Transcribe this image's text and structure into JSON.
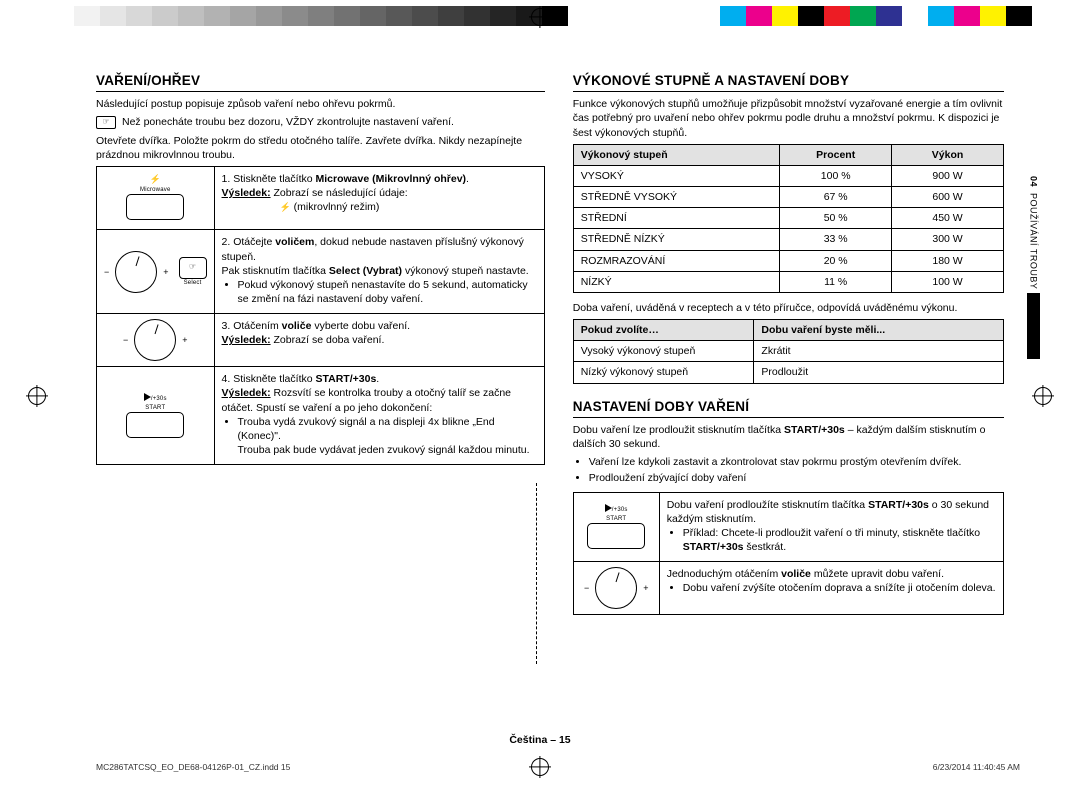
{
  "colorbar": {
    "grays": [
      "#ffffff",
      "#f2f2f2",
      "#e5e5e5",
      "#d8d8d8",
      "#cbcbcb",
      "#bfbfbf",
      "#b2b2b2",
      "#a5a5a5",
      "#989898",
      "#8b8b8b",
      "#7f7f7f",
      "#727272",
      "#656565",
      "#585858",
      "#4c4c4c",
      "#3f3f3f",
      "#323232",
      "#252525",
      "#191919",
      "#000000"
    ],
    "hues": [
      "#00aeef",
      "#ec008c",
      "#fff200",
      "#000000",
      "#ed1c24",
      "#00a651",
      "#2e3192",
      "#ffffff",
      "#00aeef",
      "#ec008c",
      "#fff200",
      "#000000"
    ]
  },
  "left": {
    "heading": "VAŘENÍ/OHŘEV",
    "intro": "Následující postup popisuje způsob vaření nebo ohřevu pokrmů.",
    "note": "Než ponecháte troubu bez dozoru, VŽDY zkontrolujte nastavení vaření.",
    "p2": "Otevřete dvířka. Položte pokrm do středu otočného talíře. Zavřete dvířka. Nikdy nezapínejte prázdnou mikrovlnnou troubu.",
    "microwave_label": "Microwave",
    "select_label": "Select",
    "start_label": "START",
    "plus30": "/+30s",
    "steps": {
      "s1_a": "1.  Stiskněte tlačítko ",
      "s1_b": "Microwave (Mikrovlnný ohřev)",
      "s1_c": ".",
      "s1_res": "Výsledek:",
      "s1_res_t": " Zobrazí se následující údaje:",
      "s1_mode": "(mikrovlnný režim)",
      "s2_a": "2.  Otáčejte ",
      "s2_b": "voličem",
      "s2_c": ", dokud nebude nastaven příslušný výkonový stupeň.",
      "s2_d": "Pak stisknutím tlačítka ",
      "s2_e": "Select (Vybrat)",
      "s2_f": " výkonový stupeň nastavte.",
      "s2_li": "Pokud výkonový stupeň nenastavíte do 5 sekund, automaticky se změní na fázi nastavení doby vaření.",
      "s3_a": "3.  Otáčením ",
      "s3_b": "voliče",
      "s3_c": " vyberte dobu vaření.",
      "s3_res": "Výsledek:",
      "s3_res_t": " Zobrazí se doba vaření.",
      "s4_a": "4.  Stiskněte tlačítko ",
      "s4_b": "START/+30s",
      "s4_c": ".",
      "s4_res": "Výsledek:",
      "s4_res_t": " Rozsvítí se kontrolka trouby a otočný talíř se začne otáčet. Spustí se vaření a po jeho dokončení:",
      "s4_li1": "Trouba vydá zvukový signál a na displeji 4x blikne „End (Konec)\".",
      "s4_li1b": "Trouba pak bude vydávat jeden zvukový signál každou minutu."
    }
  },
  "right": {
    "heading1": "VÝKONOVÉ STUPNĚ A NASTAVENÍ DOBY",
    "p1": "Funkce výkonových stupňů umožňuje přizpůsobit množství vyzařované energie a tím ovlivnit čas potřebný pro uvaření nebo ohřev pokrmu podle druhu a množství pokrmu. K dispozici je šest výkonových stupňů.",
    "table1": {
      "headers": [
        "Výkonový stupeň",
        "Procent",
        "Výkon"
      ],
      "rows": [
        [
          "VYSOKÝ",
          "100 %",
          "900 W"
        ],
        [
          "STŘEDNĚ VYSOKÝ",
          "67 %",
          "600 W"
        ],
        [
          "STŘEDNÍ",
          "50 %",
          "450 W"
        ],
        [
          "STŘEDNĚ NÍZKÝ",
          "33 %",
          "300 W"
        ],
        [
          "ROZMRAZOVÁNÍ",
          "20 %",
          "180 W"
        ],
        [
          "NÍZKÝ",
          "11 %",
          "100 W"
        ]
      ]
    },
    "p2": "Doba vaření, uváděná v receptech a v této příručce, odpovídá uváděnému výkonu.",
    "table2": {
      "headers": [
        "Pokud zvolíte…",
        "Dobu vaření byste měli..."
      ],
      "rows": [
        [
          "Vysoký výkonový stupeň",
          "Zkrátit"
        ],
        [
          "Nízký výkonový stupeň",
          "Prodloužit"
        ]
      ]
    },
    "heading2": "NASTAVENÍ DOBY VAŘENÍ",
    "p3a": "Dobu vaření lze prodloužit stisknutím tlačítka ",
    "p3b": "START/+30s",
    "p3c": " – každým dalším stisknutím o dalších 30 sekund.",
    "li1": "Vaření lze kdykoli zastavit a zkontrolovat stav pokrmu prostým otevřením dvířek.",
    "li2": "Prodloužení zbývající doby vaření",
    "steps2": {
      "r1a": "Dobu vaření prodloužíte stisknutím tlačítka ",
      "r1b": "START/+30s",
      "r1c": " o 30 sekund každým stisknutím.",
      "r1li": "Příklad: Chcete-li prodloužit vaření o tři minuty, stiskněte tlačítko ",
      "r1lib": "START/+30s",
      "r1lic": " šestkrát.",
      "r2a": "Jednoduchým otáčením ",
      "r2b": "voliče",
      "r2c": " můžete upravit dobu vaření.",
      "r2li": "Dobu vaření zvýšíte otočením doprava a snížíte ji otočením doleva."
    }
  },
  "side": {
    "num": "04",
    "text": "POUŽÍVÁNÍ TROUBY"
  },
  "footer": {
    "center": "Čeština – 15",
    "left": "MC286TATCSQ_EO_DE68-04126P-01_CZ.indd   15",
    "right": "6/23/2014   11:40:45 AM"
  }
}
